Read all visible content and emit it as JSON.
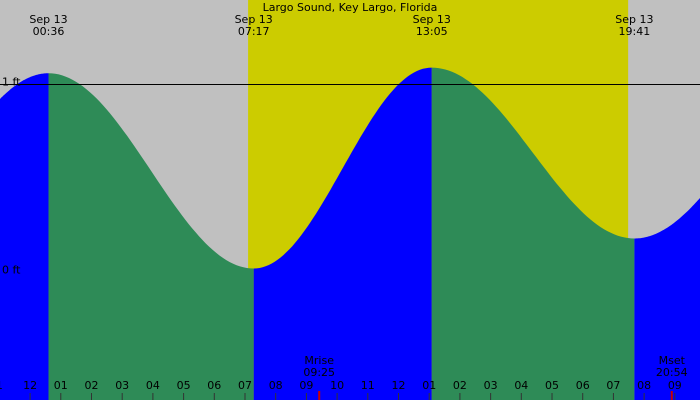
{
  "chart_data": {
    "type": "tide",
    "title": "Largo Sound, Key Largo, Florida",
    "xlim": [
      -0.98,
      21.82
    ],
    "ylim": [
      -0.68,
      1.45
    ],
    "yticks": [
      {
        "value": 1,
        "label": "1 ft"
      },
      {
        "value": 0,
        "label": "0 ft"
      }
    ],
    "ref_line": 1,
    "daylight": [
      7.1,
      19.48
    ],
    "extremes": [
      {
        "date": "Sep 13",
        "time": "00:36",
        "hour": 0.6,
        "height": 1.06
      },
      {
        "date": "Sep 13",
        "time": "07:17",
        "hour": 7.283,
        "height": 0.02
      },
      {
        "date": "Sep 13",
        "time": "13:05",
        "hour": 13.083,
        "height": 1.09
      },
      {
        "date": "Sep 13",
        "time": "19:41",
        "hour": 19.683,
        "height": 0.18
      }
    ],
    "moon": [
      {
        "label": "Mrise",
        "time": "09:25",
        "hour": 9.417
      },
      {
        "label": "Mset",
        "time": "20:54",
        "hour": 20.9
      }
    ],
    "xticks": [
      {
        "value": -1,
        "label": "1"
      },
      {
        "value": 0,
        "label": "12"
      },
      {
        "value": 1,
        "label": "01"
      },
      {
        "value": 2,
        "label": "02"
      },
      {
        "value": 3,
        "label": "03"
      },
      {
        "value": 4,
        "label": "04"
      },
      {
        "value": 5,
        "label": "05"
      },
      {
        "value": 6,
        "label": "06"
      },
      {
        "value": 7,
        "label": "07"
      },
      {
        "value": 8,
        "label": "08"
      },
      {
        "value": 9,
        "label": "09"
      },
      {
        "value": 10,
        "label": "10"
      },
      {
        "value": 11,
        "label": "11"
      },
      {
        "value": 12,
        "label": "12"
      },
      {
        "value": 13,
        "label": "01"
      },
      {
        "value": 14,
        "label": "02"
      },
      {
        "value": 15,
        "label": "03"
      },
      {
        "value": 16,
        "label": "04"
      },
      {
        "value": 17,
        "label": "05"
      },
      {
        "value": 18,
        "label": "06"
      },
      {
        "value": 19,
        "label": "07"
      },
      {
        "value": 20,
        "label": "08"
      },
      {
        "value": 21,
        "label": "09"
      }
    ],
    "colors": {
      "night": "#c0c0c0",
      "day": "#cccc00",
      "rising": "#0000ff",
      "falling": "#2e8b57",
      "moon": "#cc0000"
    }
  }
}
